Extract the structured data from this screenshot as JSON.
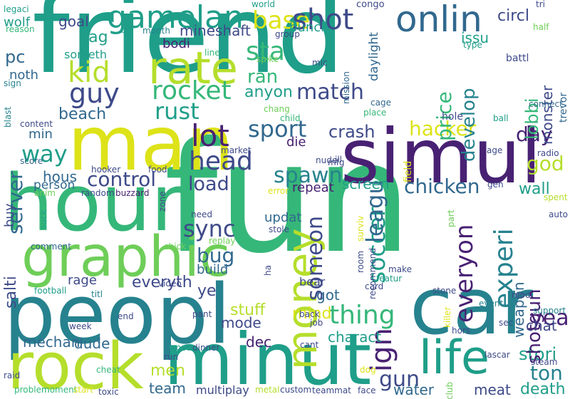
{
  "palette": {
    "purple": "#482173",
    "indigo": "#3e4a89",
    "blue": "#31688e",
    "teal": "#26828e",
    "green": "#1f9e89",
    "mint": "#35b779",
    "lime": "#6ece58",
    "yellowgreen": "#b5de2b",
    "yellow": "#dde318"
  },
  "words": [
    {
      "text": "friend",
      "color": "green"
    },
    {
      "text": "fun",
      "color": "mint"
    },
    {
      "text": "man",
      "color": "yellow"
    },
    {
      "text": "hour",
      "color": "mint"
    },
    {
      "text": "peopl",
      "color": "teal"
    },
    {
      "text": "simul",
      "color": "purple"
    },
    {
      "text": "car",
      "color": "teal"
    },
    {
      "text": "minut",
      "color": "green"
    },
    {
      "text": "rock",
      "color": "yellowgreen"
    },
    {
      "text": "graphic",
      "color": "lime"
    },
    {
      "text": "rate",
      "color": "yellowgreen"
    },
    {
      "text": "gamelan",
      "color": "green"
    },
    {
      "text": "onlin",
      "color": "blue"
    },
    {
      "text": "life",
      "color": "green"
    },
    {
      "text": "money",
      "color": "yellowgreen"
    },
    {
      "text": "guy",
      "color": "indigo"
    },
    {
      "text": "kid",
      "color": "yellowgreen"
    },
    {
      "text": "rocket",
      "color": "mint"
    },
    {
      "text": "lot",
      "color": "purple"
    },
    {
      "text": "head",
      "color": "indigo"
    },
    {
      "text": "sport",
      "color": "blue"
    },
    {
      "text": "base",
      "color": "yellow"
    },
    {
      "text": "shot",
      "color": "indigo"
    },
    {
      "text": "sta",
      "color": "mint"
    },
    {
      "text": "ran",
      "color": "mint"
    },
    {
      "text": "rust",
      "color": "green"
    },
    {
      "text": "match",
      "color": "indigo"
    },
    {
      "text": "hacker",
      "color": "yellow"
    },
    {
      "text": "crash",
      "color": "indigo"
    },
    {
      "text": "day",
      "color": "purple"
    },
    {
      "text": "way",
      "color": "green"
    },
    {
      "text": "control",
      "color": "indigo"
    },
    {
      "text": "spawn",
      "color": "teal"
    },
    {
      "text": "chicken",
      "color": "blue"
    },
    {
      "text": "load",
      "color": "indigo"
    },
    {
      "text": "sync",
      "color": "indigo"
    },
    {
      "text": "someon",
      "color": "indigo"
    },
    {
      "text": "soccer",
      "color": "green"
    },
    {
      "text": "leagu",
      "color": "blue"
    },
    {
      "text": "experi",
      "color": "teal"
    },
    {
      "text": "everyon",
      "color": "purple"
    },
    {
      "text": "bug",
      "color": "blue"
    },
    {
      "text": "thing",
      "color": "mint"
    },
    {
      "text": "ign",
      "color": "purple"
    },
    {
      "text": "year",
      "color": "purple"
    },
    {
      "text": "gun",
      "color": "indigo"
    },
    {
      "text": "ton",
      "color": "teal"
    },
    {
      "text": "stori",
      "color": "green"
    },
    {
      "text": "death",
      "color": "green"
    },
    {
      "text": "god",
      "color": "yellowgreen"
    },
    {
      "text": "wall",
      "color": "green"
    },
    {
      "text": "server",
      "color": "blue"
    },
    {
      "text": "pc",
      "color": "blue"
    },
    {
      "text": "lag",
      "color": "green"
    },
    {
      "text": "beach",
      "color": "blue"
    },
    {
      "text": "price",
      "color": "mint"
    },
    {
      "text": "develop",
      "color": "teal"
    },
    {
      "text": "lobbi",
      "color": "mint"
    },
    {
      "text": "circl",
      "color": "indigo"
    },
    {
      "text": "issu",
      "color": "green"
    },
    {
      "text": "monster",
      "color": "indigo"
    },
    {
      "text": "trevor",
      "color": "blue"
    },
    {
      "text": "shotgun",
      "color": "purple"
    },
    {
      "text": "weapon",
      "color": "blue"
    },
    {
      "text": "chat",
      "color": "indigo"
    },
    {
      "text": "mineshaft",
      "color": "indigo"
    },
    {
      "text": "bodi",
      "color": "purple"
    },
    {
      "text": "anyon",
      "color": "green"
    },
    {
      "text": "goal",
      "color": "indigo"
    },
    {
      "text": "someth",
      "color": "green"
    },
    {
      "text": "noth",
      "color": "blue"
    },
    {
      "text": "wolf",
      "color": "green"
    },
    {
      "text": "everyth",
      "color": "indigo"
    },
    {
      "text": "rage",
      "color": "indigo"
    },
    {
      "text": "salti",
      "color": "indigo"
    },
    {
      "text": "buy",
      "color": "indigo"
    },
    {
      "text": "build",
      "color": "blue"
    },
    {
      "text": "updat",
      "color": "blue"
    },
    {
      "text": "repeat",
      "color": "purple"
    },
    {
      "text": "screen",
      "color": "green"
    },
    {
      "text": "mode",
      "color": "indigo"
    },
    {
      "text": "mind",
      "color": "yellow"
    },
    {
      "text": "stuff",
      "color": "yellowgreen"
    },
    {
      "text": "charact",
      "color": "green"
    },
    {
      "text": "got",
      "color": "blue"
    },
    {
      "text": "bear",
      "color": "indigo"
    },
    {
      "text": "dec",
      "color": "purple"
    },
    {
      "text": "mechan",
      "color": "blue"
    },
    {
      "text": "dude",
      "color": "blue"
    },
    {
      "text": "men",
      "color": "yellowgreen"
    },
    {
      "text": "team",
      "color": "blue"
    },
    {
      "text": "water",
      "color": "blue"
    },
    {
      "text": "meat",
      "color": "indigo"
    },
    {
      "text": "ye",
      "color": "indigo"
    },
    {
      "text": "hous",
      "color": "blue"
    },
    {
      "text": "person",
      "color": "blue"
    },
    {
      "text": "min",
      "color": "blue"
    },
    {
      "text": "die",
      "color": "purple"
    },
    {
      "text": "bunch",
      "color": "green"
    },
    {
      "text": "daylight",
      "color": "blue"
    },
    {
      "text": "multiplay",
      "color": "indigo"
    },
    {
      "text": "world",
      "color": "green"
    },
    {
      "text": "congo",
      "color": "indigo"
    },
    {
      "text": "legaci",
      "color": "green"
    },
    {
      "text": "reason",
      "color": "mint"
    },
    {
      "text": "bit",
      "color": "green"
    },
    {
      "text": "month",
      "color": "teal"
    },
    {
      "text": "group",
      "color": "indigo"
    },
    {
      "text": "line",
      "color": "mint"
    },
    {
      "text": "spike",
      "color": "lime"
    },
    {
      "text": "mic",
      "color": "indigo"
    },
    {
      "text": "tri",
      "color": "indigo"
    },
    {
      "text": "half",
      "color": "lime"
    },
    {
      "text": "type",
      "color": "green"
    },
    {
      "text": "battl",
      "color": "indigo"
    },
    {
      "text": "connect",
      "color": "blue"
    },
    {
      "text": "ball",
      "color": "green"
    },
    {
      "text": "hole",
      "color": "indigo"
    },
    {
      "text": "cage",
      "color": "blue"
    },
    {
      "text": "place",
      "color": "mint"
    },
    {
      "text": "chang",
      "color": "lime"
    },
    {
      "text": "child",
      "color": "mint"
    },
    {
      "text": "mission",
      "color": "blue"
    },
    {
      "text": "sign",
      "color": "teal"
    },
    {
      "text": "blast",
      "color": "teal"
    },
    {
      "text": "content",
      "color": "indigo"
    },
    {
      "text": "score",
      "color": "blue"
    },
    {
      "text": "hooker",
      "color": "indigo"
    },
    {
      "text": "food",
      "color": "indigo"
    },
    {
      "text": "anim",
      "color": "lime"
    },
    {
      "text": "random",
      "color": "indigo"
    },
    {
      "text": "buzzard",
      "color": "purple"
    },
    {
      "text": "zone",
      "color": "indigo"
    },
    {
      "text": "market",
      "color": "indigo"
    },
    {
      "text": "nude",
      "color": "indigo"
    },
    {
      "text": "mfg",
      "color": "indigo"
    },
    {
      "text": "ill",
      "color": "indigo"
    },
    {
      "text": "field",
      "color": "yellow"
    },
    {
      "text": "error",
      "color": "yellow"
    },
    {
      "text": "gen",
      "color": "indigo"
    },
    {
      "text": "age",
      "color": "indigo"
    },
    {
      "text": "radio",
      "color": "indigo"
    },
    {
      "text": "spent",
      "color": "yellowgreen"
    },
    {
      "text": "auto",
      "color": "indigo"
    },
    {
      "text": "part",
      "color": "lime"
    },
    {
      "text": "surviv",
      "color": "yellow"
    },
    {
      "text": "stole",
      "color": "indigo"
    },
    {
      "text": "need",
      "color": "indigo"
    },
    {
      "text": "suck",
      "color": "green"
    },
    {
      "text": "replay",
      "color": "lime"
    },
    {
      "text": "comment",
      "color": "blue"
    },
    {
      "text": "chick",
      "color": "lime"
    },
    {
      "text": "ha",
      "color": "indigo"
    },
    {
      "text": "room",
      "color": "indigo"
    },
    {
      "text": "recommend",
      "color": "indigo"
    },
    {
      "text": "make",
      "color": "indigo"
    },
    {
      "text": "featur",
      "color": "green"
    },
    {
      "text": "card",
      "color": "indigo"
    },
    {
      "text": "stone",
      "color": "indigo"
    },
    {
      "text": "mod",
      "color": "indigo"
    },
    {
      "text": "football",
      "color": "green"
    },
    {
      "text": "titl",
      "color": "teal"
    },
    {
      "text": "video",
      "color": "indigo"
    },
    {
      "text": "event",
      "color": "teal"
    },
    {
      "text": "support",
      "color": "teal"
    },
    {
      "text": "end",
      "color": "indigo"
    },
    {
      "text": "pant",
      "color": "indigo"
    },
    {
      "text": "back",
      "color": "indigo"
    },
    {
      "text": "job",
      "color": "indigo"
    },
    {
      "text": "week",
      "color": "indigo"
    },
    {
      "text": "killer",
      "color": "yellow"
    },
    {
      "text": "hors",
      "color": "indigo"
    },
    {
      "text": "sec",
      "color": "indigo"
    },
    {
      "text": "cant",
      "color": "indigo"
    },
    {
      "text": "dinner",
      "color": "indigo"
    },
    {
      "text": "wood",
      "color": "green"
    },
    {
      "text": "lascar",
      "color": "indigo"
    },
    {
      "text": "steam",
      "color": "indigo"
    },
    {
      "text": "run",
      "color": "indigo"
    },
    {
      "text": "raid",
      "color": "indigo"
    },
    {
      "text": "cheat",
      "color": "mint"
    },
    {
      "text": "dog",
      "color": "yellow"
    },
    {
      "text": "problem",
      "color": "mint"
    },
    {
      "text": "moment",
      "color": "mint"
    },
    {
      "text": "start",
      "color": "yellow"
    },
    {
      "text": "toxic",
      "color": "indigo"
    },
    {
      "text": "metal",
      "color": "yellowgreen"
    },
    {
      "text": "custom",
      "color": "indigo"
    },
    {
      "text": "teammat",
      "color": "indigo"
    },
    {
      "text": "face",
      "color": "indigo"
    },
    {
      "text": "club",
      "color": "lime"
    }
  ]
}
